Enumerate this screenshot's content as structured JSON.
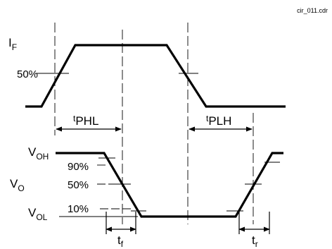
{
  "file_label": "cir_011.cdr",
  "input_waveform": {
    "symbol": "I",
    "subscript": "F",
    "threshold_label": "50%"
  },
  "output_waveform": {
    "symbol": "V",
    "subscript": "O",
    "high_level": {
      "symbol": "V",
      "subscript": "OH"
    },
    "low_level": {
      "symbol": "V",
      "subscript": "OL"
    },
    "levels": [
      "90%",
      "50%",
      "10%"
    ]
  },
  "timing": {
    "tphl": {
      "symbol": "t",
      "subscript": "PHL"
    },
    "tplh": {
      "symbol": "t",
      "subscript": "PLH"
    },
    "tf": {
      "symbol": "t",
      "subscript": "f"
    },
    "tr": {
      "symbol": "t",
      "subscript": "r"
    }
  }
}
